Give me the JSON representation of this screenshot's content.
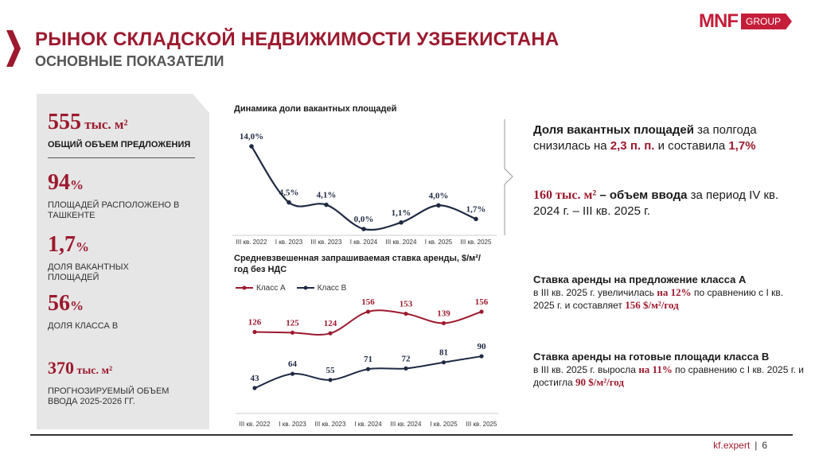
{
  "header": {
    "title": "РЫНОК СКЛАДСКОЙ НЕДВИЖИМОСТИ УЗБЕКИСТАНА",
    "subtitle": "ОСНОВНЫЕ ПОКАЗАТЕЛИ"
  },
  "logo": {
    "mark": "MNF",
    "group": "GROUP"
  },
  "stats": {
    "s1_num": "555",
    "s1_unit": " тыс. м²",
    "s1_label": "ОБЩИЙ ОБЪЕМ ПРЕДЛОЖЕНИЯ",
    "s2_num": "94",
    "s2_unit": "%",
    "s2_label": "ПЛОЩАДЕЙ РАСПОЛОЖЕНО В ТАШКЕНТЕ",
    "s3_num": "1,7",
    "s3_unit": "%",
    "s3_label": "ДОЛЯ ВАКАНТНЫХ ПЛОЩАДЕЙ",
    "s4_num": "56",
    "s4_unit": "%",
    "s4_label": "ДОЛЯ КЛАССА B",
    "s5_num": "370",
    "s5_unit": " тыс. м²",
    "s5_label": "ПРОГНОЗИРУЕМЫЙ ОБЪЕМ ВВОДА 2025-2026 ГГ."
  },
  "chart_data": [
    {
      "type": "line",
      "title": "Динамика доли вакантных площадей",
      "categories": [
        "III кв. 2022",
        "I кв. 2023",
        "III кв. 2023",
        "I кв. 2024",
        "III кв. 2024",
        "I кв. 2025",
        "III кв. 2025"
      ],
      "series": [
        {
          "values": [
            14.0,
            4.5,
            4.1,
            0.0,
            1.1,
            4.0,
            1.7
          ]
        }
      ],
      "data_labels": [
        "14,0%",
        "4,5%",
        "4,1%",
        "0,0%",
        "1,1%",
        "4,0%",
        "1,7%"
      ],
      "ylim": [
        0,
        14
      ],
      "color": "#1f2a44"
    },
    {
      "type": "line",
      "title": "Средневзвешенная запрашиваемая ставка аренды, $/м²/год без НДС",
      "categories": [
        "III кв. 2022",
        "I кв. 2023",
        "III кв. 2023",
        "I кв. 2024",
        "III кв. 2024",
        "I кв. 2025",
        "III кв. 2025"
      ],
      "series": [
        {
          "name": "Класс А",
          "values": [
            126,
            125,
            124,
            156,
            153,
            139,
            156
          ],
          "color": "#9c1a2e"
        },
        {
          "name": "Класс В",
          "values": [
            43,
            64,
            55,
            71,
            72,
            81,
            90
          ],
          "color": "#1f2a44"
        }
      ],
      "legend": "top-left"
    }
  ],
  "text": {
    "tb1_a": "Доля вакантных площадей",
    "tb1_b": " за полгода снизилась на ",
    "tb1_c": "2,3 п. п.",
    "tb1_d": " и составила ",
    "tb1_e": "1,7%",
    "tb2_a": "160 тыс. м²",
    "tb2_b": " – объем ввода",
    "tb2_c": " за период IV кв. 2024 г. – III кв. 2025 г.",
    "tb3_title": "Ставка аренды на предложение класса А",
    "tb3_a": "в III кв. 2025 г. увеличилась ",
    "tb3_b": "на 12%",
    "tb3_c": " по сравнению с I кв. 2025 г. и составляет ",
    "tb3_d": "156 $/м²/год",
    "tb4_title": "Ставка аренды на готовые площади класса В",
    "tb4_a": "в III кв. 2025 г. выросла ",
    "tb4_b": "на 11%",
    "tb4_c": " по сравнению с I кв. 2025 г. и достигла ",
    "tb4_d": "90 $/м²/год"
  },
  "footer": {
    "site": "kf.expert",
    "sep": "|",
    "page": "6"
  }
}
